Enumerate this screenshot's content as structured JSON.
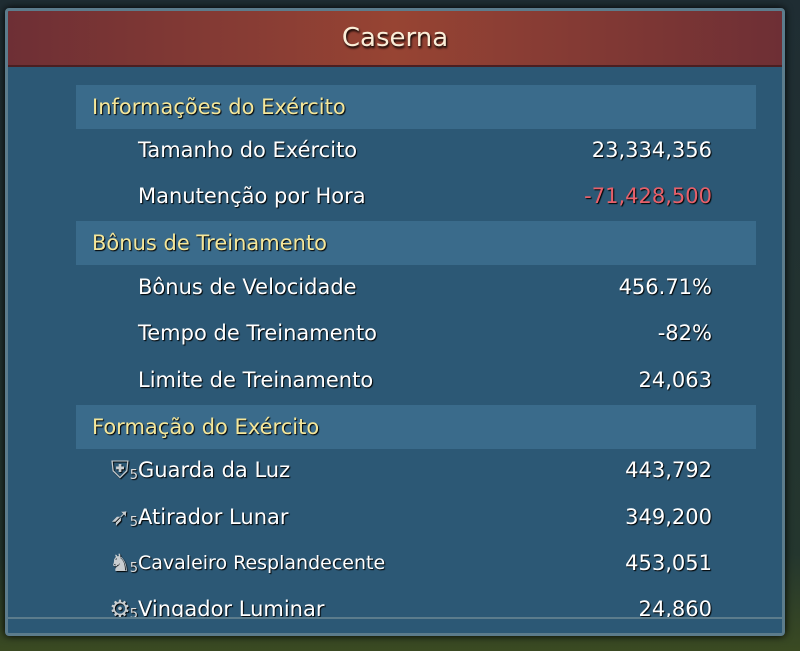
{
  "title": "Caserna",
  "sections": [
    {
      "label": "Informações do Exército",
      "rows": [
        {
          "label": "Tamanho do Exército",
          "value": "23,334,356"
        },
        {
          "label": "Manutenção por Hora",
          "value": "-71,428,500"
        }
      ]
    },
    {
      "label": "Bônus de Treinamento",
      "rows": [
        {
          "label": "Bônus de Velocidade",
          "value": "456.71%"
        },
        {
          "label": "Tempo de Treinamento",
          "value": "-82%"
        },
        {
          "label": "Limite de Treinamento",
          "value": "24,063"
        }
      ]
    },
    {
      "label": "Formação do Exército",
      "rows": [
        {
          "label": "Guarda da Luz",
          "value": "443,792",
          "icon": "shield-icon",
          "tier": "5"
        },
        {
          "label": "Atirador Lunar",
          "value": "349,200",
          "icon": "bow-icon",
          "tier": "5"
        },
        {
          "label": "Cavaleiro Resplandecente",
          "value": "453,051",
          "icon": "horse-icon",
          "tier": "5"
        },
        {
          "label": "Vingador Luminar",
          "value": "24,860",
          "icon": "siege-icon",
          "tier": "5"
        }
      ]
    }
  ],
  "colors": {
    "negative": "#e8606a",
    "section_text": "#f5e79a",
    "header": "#974433",
    "panel": "#2c5875"
  }
}
